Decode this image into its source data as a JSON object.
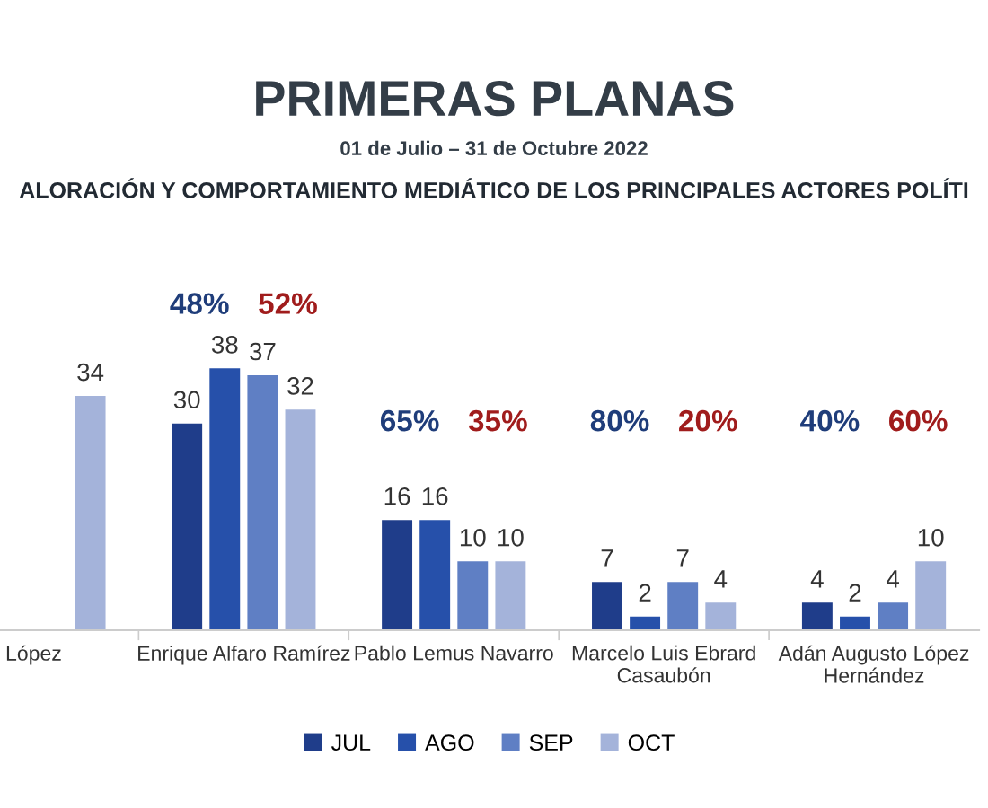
{
  "chart_data": {
    "type": "bar",
    "title": "PRIMERAS PLANAS",
    "subtitle": "01 de Julio – 31 de Octubre 2022",
    "annotations": [
      "ALORACIÓN Y COMPORTAMIENTO MEDIÁTICO DE LOS PRINCIPALES ACTORES POLÍTI",
      "48%",
      "52%",
      "65%",
      "35%",
      "80%",
      "20%",
      "40%",
      "60%"
    ],
    "categories": [
      "López",
      "Enrique Alfaro Ramírez",
      "Pablo Lemus Navarro",
      "Marcelo Luis Ebrard\nCasaubón",
      "Adán Augusto López\nHernández"
    ],
    "series": [
      {
        "name": "JUL",
        "color": "#1f3d8a",
        "values": [
          null,
          30,
          16,
          7,
          4
        ]
      },
      {
        "name": "AGO",
        "color": "#2650aa",
        "values": [
          null,
          38,
          16,
          2,
          2
        ]
      },
      {
        "name": "SEP",
        "color": "#5f7fc4",
        "values": [
          null,
          37,
          10,
          7,
          4
        ]
      },
      {
        "name": "OCT",
        "color": "#a4b3da",
        "values": [
          34,
          32,
          10,
          4,
          10
        ]
      }
    ],
    "data_labels": true,
    "legend": "bottom",
    "grid": false
  }
}
